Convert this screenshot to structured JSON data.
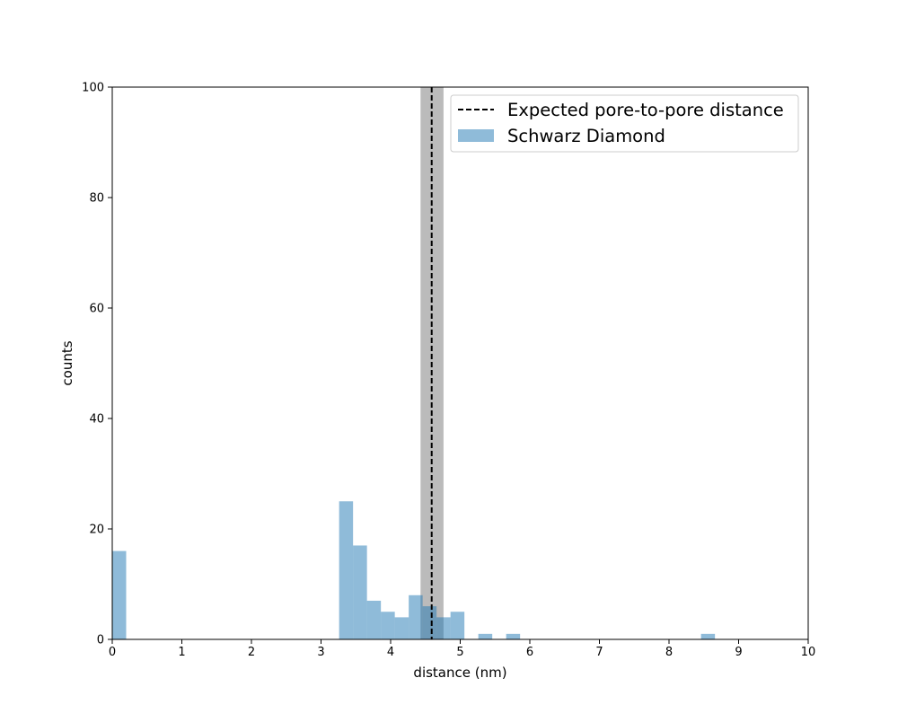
{
  "chart_data": {
    "type": "bar",
    "title": "",
    "xlabel": "distance (nm)",
    "ylabel": "counts",
    "xlim": [
      0,
      10
    ],
    "ylim": [
      0,
      100
    ],
    "grid": false,
    "legend_placement": "top-right",
    "x_ticks": [
      0,
      1,
      2,
      3,
      4,
      5,
      6,
      7,
      8,
      9,
      10
    ],
    "y_ticks": [
      0,
      20,
      40,
      60,
      80,
      100
    ],
    "bin_width": 0.2,
    "series": [
      {
        "name": "Schwarz Diamond",
        "color": "#1f77b4",
        "alpha": 0.5,
        "bins": [
          {
            "x0": 0.0,
            "count": 16
          },
          {
            "x0": 3.26,
            "count": 25
          },
          {
            "x0": 3.46,
            "count": 17
          },
          {
            "x0": 3.66,
            "count": 7
          },
          {
            "x0": 3.86,
            "count": 5
          },
          {
            "x0": 4.06,
            "count": 4
          },
          {
            "x0": 4.26,
            "count": 8
          },
          {
            "x0": 4.46,
            "count": 6
          },
          {
            "x0": 4.66,
            "count": 4
          },
          {
            "x0": 4.86,
            "count": 5
          },
          {
            "x0": 5.26,
            "count": 1
          },
          {
            "x0": 5.66,
            "count": 1
          },
          {
            "x0": 8.46,
            "count": 1
          }
        ]
      }
    ],
    "reference_line": {
      "name": "Expected pore-to-pore distance",
      "x": 4.59,
      "band": [
        4.43,
        4.76
      ],
      "color": "#000000",
      "band_color": "#bbbbbb",
      "style": "dashed"
    }
  }
}
